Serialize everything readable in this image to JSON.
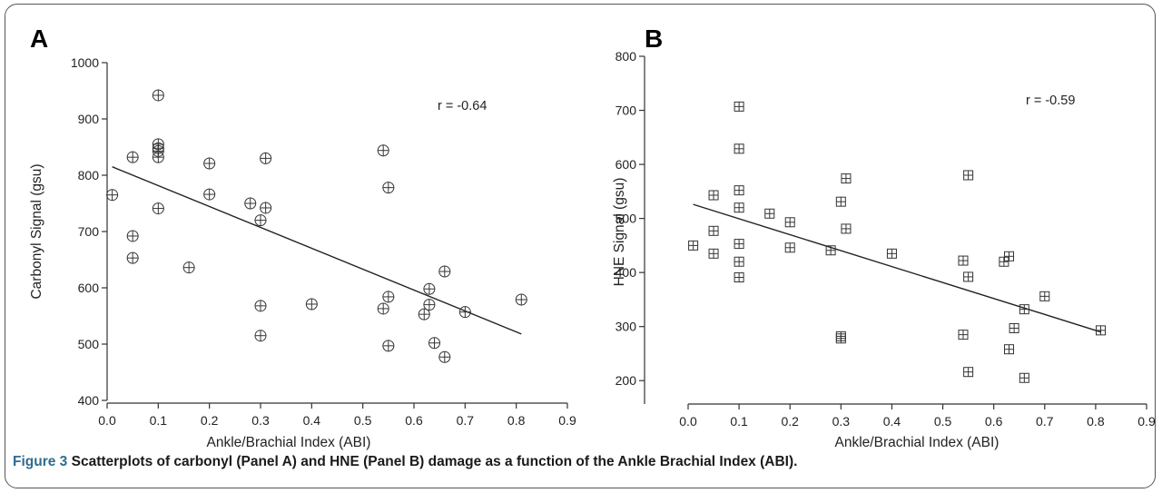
{
  "figure": {
    "caption_label": "Figure 3",
    "caption_text": "Scatterplots of carbonyl (Panel A) and HNE (Panel B) damage as a function of the Ankle Brachial Index (ABI)."
  },
  "colors": {
    "marker": "#333333",
    "axis": "#333333",
    "fit_line": "#222222"
  },
  "chart_data": [
    {
      "type": "scatter",
      "panel_label": "A",
      "xlabel": "Ankle/Brachial Index (ABI)",
      "ylabel": "Carbonyl Signal (gsu)",
      "xlim": [
        0.0,
        0.9
      ],
      "ylim": [
        400,
        1000
      ],
      "x_ticks": [
        "0.0",
        "0.1",
        "0.2",
        "0.3",
        "0.4",
        "0.5",
        "0.6",
        "0.7",
        "0.8",
        "0.9"
      ],
      "y_ticks": [
        "400",
        "500",
        "600",
        "700",
        "800",
        "900",
        "1000"
      ],
      "marker": "circle-plus",
      "annotation": "r = -0.64",
      "points": [
        [
          0.01,
          765
        ],
        [
          0.05,
          832
        ],
        [
          0.05,
          692
        ],
        [
          0.05,
          653
        ],
        [
          0.1,
          942
        ],
        [
          0.1,
          855
        ],
        [
          0.1,
          848
        ],
        [
          0.1,
          843
        ],
        [
          0.1,
          832
        ],
        [
          0.1,
          741
        ],
        [
          0.16,
          636
        ],
        [
          0.2,
          821
        ],
        [
          0.2,
          766
        ],
        [
          0.28,
          750
        ],
        [
          0.3,
          720
        ],
        [
          0.3,
          568
        ],
        [
          0.3,
          515
        ],
        [
          0.31,
          830
        ],
        [
          0.31,
          742
        ],
        [
          0.4,
          571
        ],
        [
          0.54,
          844
        ],
        [
          0.54,
          563
        ],
        [
          0.55,
          778
        ],
        [
          0.55,
          584
        ],
        [
          0.55,
          497
        ],
        [
          0.62,
          553
        ],
        [
          0.63,
          598
        ],
        [
          0.63,
          570
        ],
        [
          0.64,
          502
        ],
        [
          0.66,
          629
        ],
        [
          0.66,
          477
        ],
        [
          0.7,
          557
        ],
        [
          0.81,
          579
        ]
      ],
      "fit_line": [
        [
          0.01,
          815
        ],
        [
          0.81,
          518
        ]
      ]
    },
    {
      "type": "scatter",
      "panel_label": "B",
      "xlabel": "Ankle/Brachial Index (ABI)",
      "ylabel": "HNE Signal (gsu)",
      "xlim": [
        0.0,
        0.9
      ],
      "ylim": [
        150,
        800
      ],
      "x_ticks": [
        "0.0",
        "0.1",
        "0.2",
        "0.3",
        "0.4",
        "0.5",
        "0.6",
        "0.7",
        "0.8",
        "0.9"
      ],
      "y_ticks": [
        "200",
        "300",
        "400",
        "500",
        "600",
        "700",
        "800"
      ],
      "marker": "square-plus",
      "annotation": "r = -0.59",
      "points": [
        [
          0.01,
          450
        ],
        [
          0.05,
          543
        ],
        [
          0.05,
          477
        ],
        [
          0.05,
          435
        ],
        [
          0.1,
          707
        ],
        [
          0.1,
          629
        ],
        [
          0.1,
          552
        ],
        [
          0.1,
          520
        ],
        [
          0.1,
          453
        ],
        [
          0.1,
          420
        ],
        [
          0.1,
          391
        ],
        [
          0.16,
          509
        ],
        [
          0.2,
          493
        ],
        [
          0.2,
          446
        ],
        [
          0.28,
          441
        ],
        [
          0.3,
          531
        ],
        [
          0.3,
          282
        ],
        [
          0.3,
          278
        ],
        [
          0.31,
          574
        ],
        [
          0.31,
          481
        ],
        [
          0.4,
          435
        ],
        [
          0.54,
          422
        ],
        [
          0.54,
          285
        ],
        [
          0.55,
          580
        ],
        [
          0.55,
          392
        ],
        [
          0.55,
          216
        ],
        [
          0.62,
          420
        ],
        [
          0.63,
          430
        ],
        [
          0.63,
          258
        ],
        [
          0.64,
          297
        ],
        [
          0.66,
          332
        ],
        [
          0.66,
          205
        ],
        [
          0.7,
          356
        ],
        [
          0.81,
          293
        ]
      ],
      "fit_line": [
        [
          0.01,
          526
        ],
        [
          0.81,
          290
        ]
      ]
    }
  ]
}
